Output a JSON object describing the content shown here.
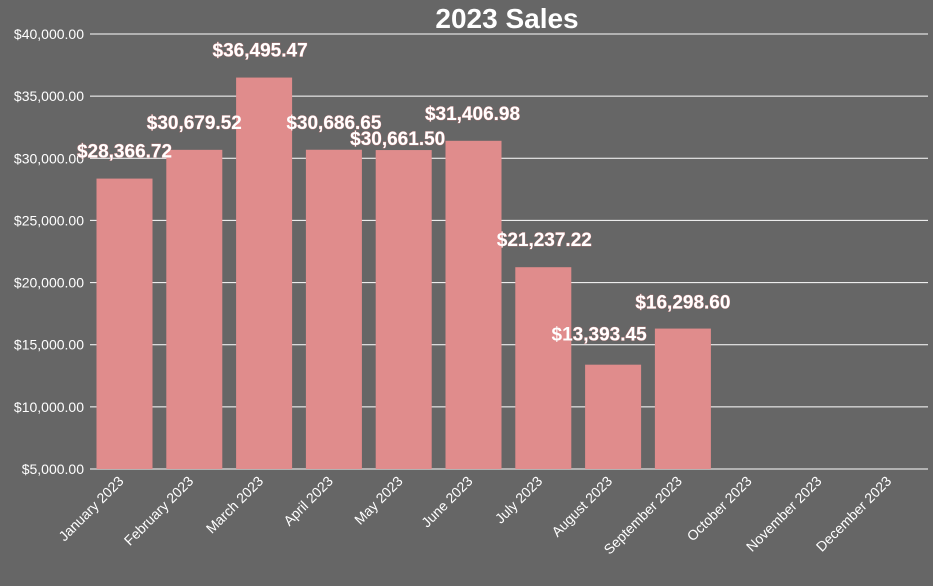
{
  "chart_data": {
    "type": "bar",
    "title": "2023 Sales",
    "xlabel": "",
    "ylabel": "",
    "categories": [
      "January 2023",
      "February 2023",
      "March 2023",
      "April 2023",
      "May 2023",
      "June 2023",
      "July 2023",
      "August 2023",
      "September 2023",
      "October 2023",
      "November 2023",
      "December 2023"
    ],
    "values": [
      28366.72,
      30679.52,
      36495.47,
      30686.65,
      30661.5,
      31406.98,
      21237.22,
      13393.45,
      16298.6,
      null,
      null,
      null
    ],
    "value_labels": [
      "$28,366.72",
      "$30,679.52",
      "$36,495.47",
      "$30,686.65",
      "$30,661.50",
      "$31,406.98",
      "$21,237.22",
      "$13,393.45",
      "$16,298.60",
      "",
      "",
      ""
    ],
    "ylim": [
      5000,
      40000
    ],
    "yticks": [
      5000,
      10000,
      15000,
      20000,
      25000,
      30000,
      35000,
      40000
    ],
    "ytick_labels": [
      "$5,000.00",
      "$10,000.00",
      "$15,000.00",
      "$20,000.00",
      "$25,000.00",
      "$30,000.00",
      "$35,000.00",
      "$40,000.00"
    ],
    "grid": true,
    "legend": "none",
    "colors": {
      "background": "#666666",
      "bar": "#e08c8c",
      "text": "#ffffff",
      "grid": "#ffffff"
    }
  }
}
